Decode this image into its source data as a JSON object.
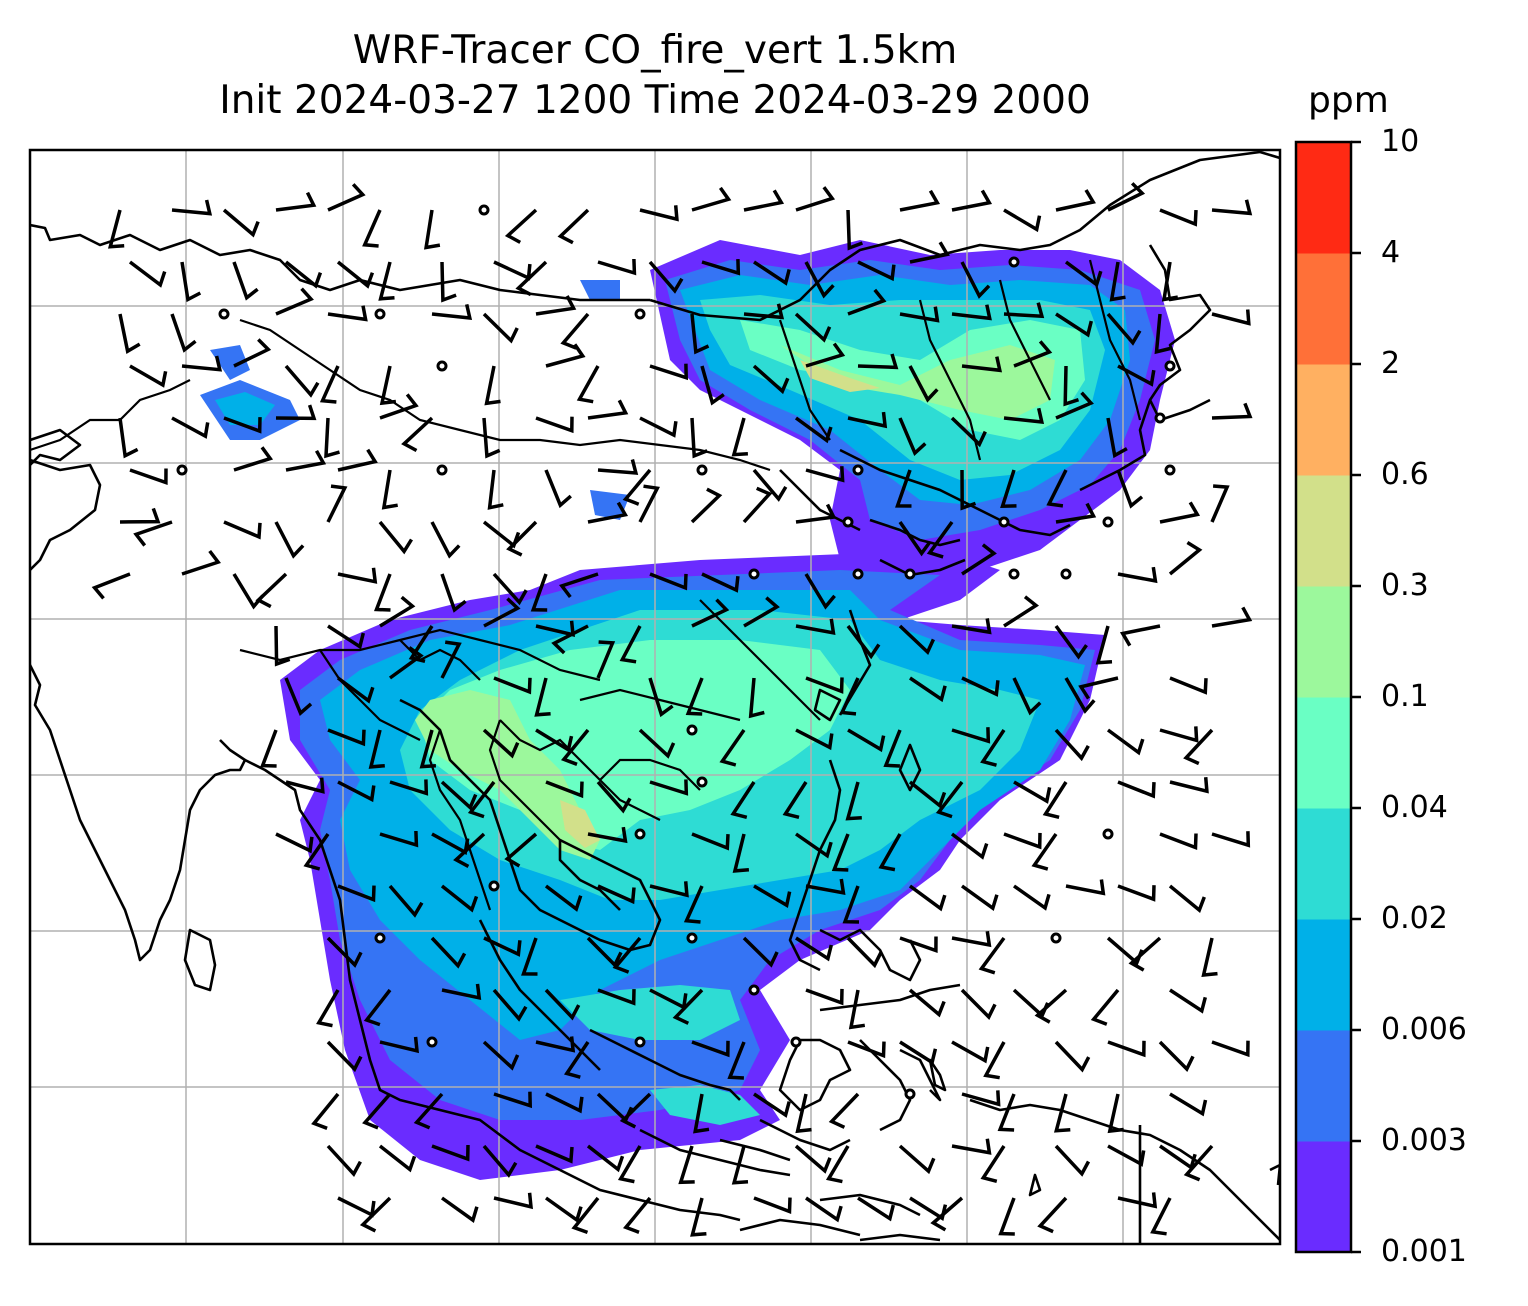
{
  "title": {
    "line1": "WRF-Tracer CO_fire_vert 1.5km",
    "line2": "Init 2024-03-27 1200 Time 2024-03-29 2000"
  },
  "colorbar": {
    "unit": "ppm",
    "tick_labels": [
      "10",
      "4",
      "2",
      "0.6",
      "0.3",
      "0.1",
      "0.04",
      "0.02",
      "0.006",
      "0.003",
      "0.001"
    ],
    "level_colors": [
      "#6a2cff",
      "#3574f4",
      "#00b0e8",
      "#2edcd4",
      "#6affc4",
      "#9cf89c",
      "#d2e08a",
      "#ffb061",
      "#ff7038",
      "#ff2a14"
    ]
  },
  "map": {
    "field": "CO_fire_vert",
    "level": "1.5km",
    "gridlines": true,
    "wind_barbs": true
  }
}
